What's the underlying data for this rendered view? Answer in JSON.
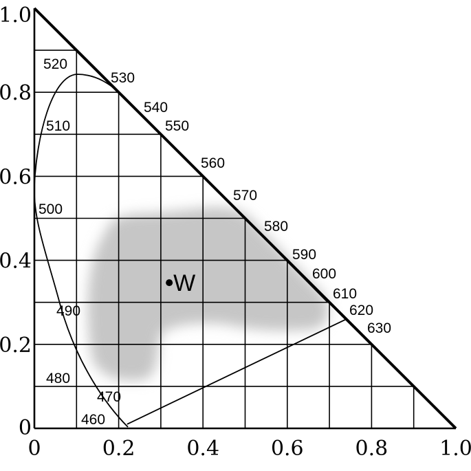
{
  "chart_data": {
    "type": "diagram",
    "xlim": [
      0,
      1
    ],
    "ylim": [
      0,
      1
    ],
    "x_ticks": [
      {
        "value": 0,
        "label": "0"
      },
      {
        "value": 0.2,
        "label": "0.2"
      },
      {
        "value": 0.4,
        "label": "0.4"
      },
      {
        "value": 0.6,
        "label": "0.6"
      },
      {
        "value": 0.8,
        "label": "0.8"
      },
      {
        "value": 1.0,
        "label": "1.0"
      }
    ],
    "y_ticks": [
      {
        "value": 0,
        "label": "0"
      },
      {
        "value": 0.2,
        "label": "0.2"
      },
      {
        "value": 0.4,
        "label": "0.4"
      },
      {
        "value": 0.6,
        "label": "0.6"
      },
      {
        "value": 0.8,
        "label": "0.8"
      },
      {
        "value": 1.0,
        "label": "1.0"
      }
    ],
    "grid_step": 0.1,
    "white_point": {
      "label": "W",
      "x": 0.32,
      "y": 0.35
    },
    "spectral_locus": [
      {
        "wavelength": "460",
        "x": 0.22,
        "y": 0.01
      },
      {
        "wavelength": "470",
        "x": 0.15,
        "y": 0.1
      },
      {
        "wavelength": "480",
        "x": 0.09,
        "y": 0.13
      },
      {
        "wavelength": "490",
        "x": 0.05,
        "y": 0.3
      },
      {
        "wavelength": "500",
        "x": 0.01,
        "y": 0.5
      },
      {
        "wavelength": "510",
        "x": 0.02,
        "y": 0.74
      },
      {
        "wavelength": "520",
        "x": 0.09,
        "y": 0.84
      },
      {
        "wavelength": "530",
        "x": 0.18,
        "y": 0.81
      },
      {
        "wavelength": "540",
        "x": 0.25,
        "y": 0.74
      },
      {
        "wavelength": "550",
        "x": 0.3,
        "y": 0.69
      },
      {
        "wavelength": "560",
        "x": 0.38,
        "y": 0.61
      },
      {
        "wavelength": "570",
        "x": 0.46,
        "y": 0.53
      },
      {
        "wavelength": "580",
        "x": 0.53,
        "y": 0.46
      },
      {
        "wavelength": "590",
        "x": 0.59,
        "y": 0.4
      },
      {
        "wavelength": "600",
        "x": 0.64,
        "y": 0.35
      },
      {
        "wavelength": "610",
        "x": 0.68,
        "y": 0.32
      },
      {
        "wavelength": "620",
        "x": 0.7,
        "y": 0.3
      },
      {
        "wavelength": "630",
        "x": 0.71,
        "y": 0.28
      }
    ],
    "purple_line": {
      "from": {
        "x": 0.22,
        "y": 0.01
      },
      "to": {
        "x": 0.74,
        "y": 0.26
      }
    },
    "gamut_region_color": "#c6c6c6",
    "line_color": "#000000",
    "background_color": "#ffffff"
  }
}
